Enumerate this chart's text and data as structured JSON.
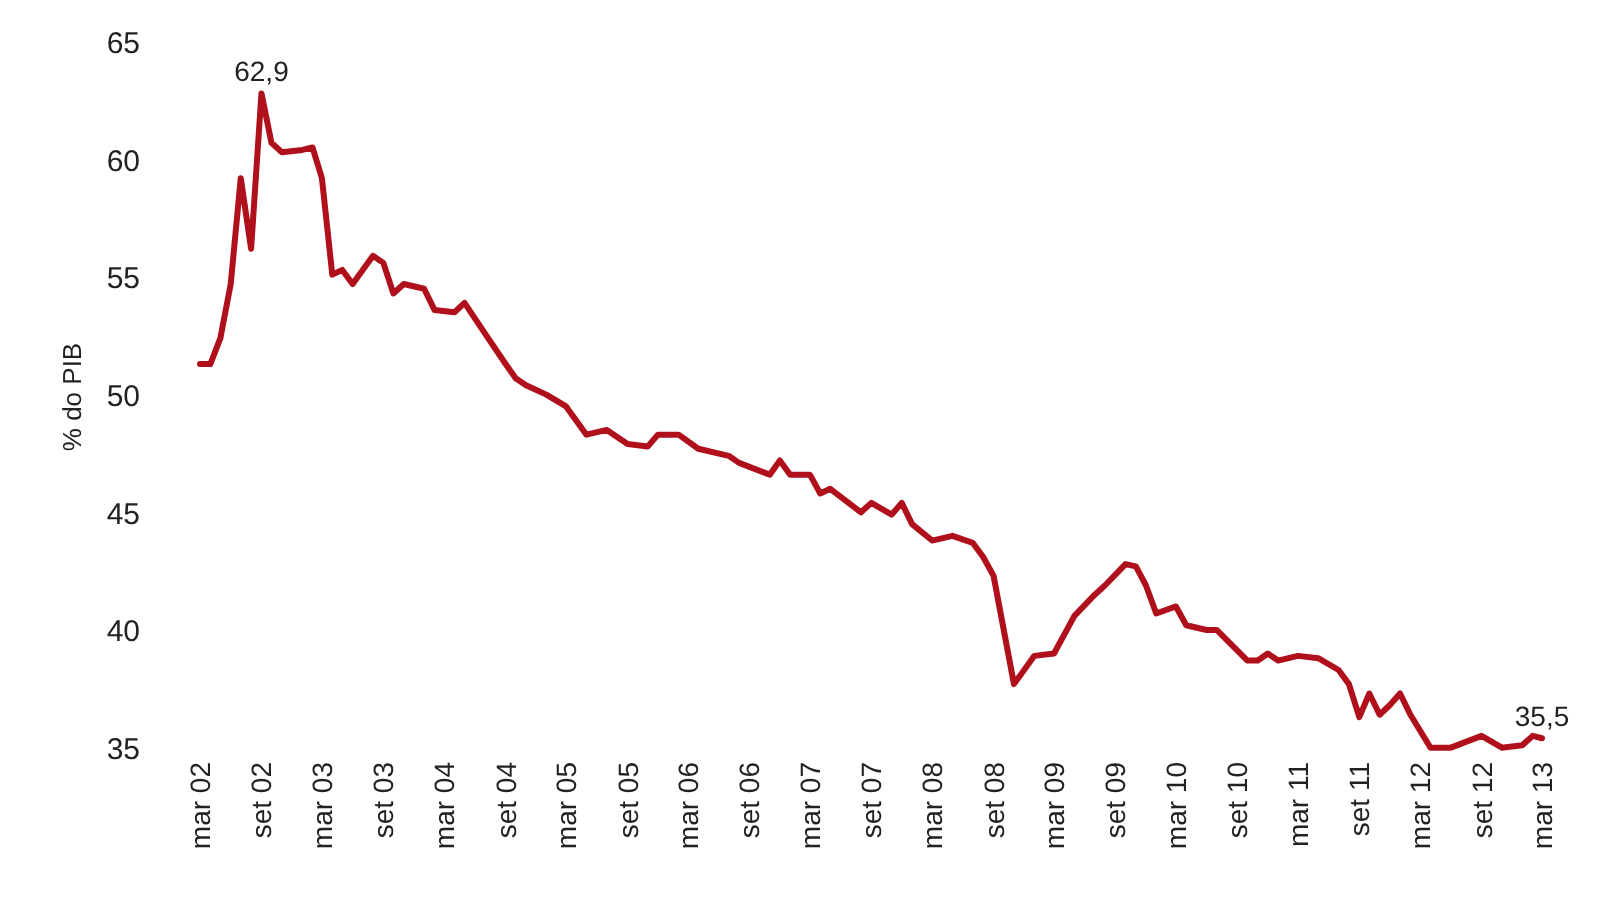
{
  "chart_data": {
    "type": "line",
    "ylabel": "% do PIB",
    "x": [
      "2002-03",
      "2002-04",
      "2002-05",
      "2002-06",
      "2002-07",
      "2002-08",
      "2002-09",
      "2002-10",
      "2002-11",
      "2003-01",
      "2003-02",
      "2003-03",
      "2003-04",
      "2003-05",
      "2003-06",
      "2003-08",
      "2003-09",
      "2003-10",
      "2003-11",
      "2004-01",
      "2004-02",
      "2004-04",
      "2004-05",
      "2004-07",
      "2004-09",
      "2004-10",
      "2004-11",
      "2005-01",
      "2005-03",
      "2005-05",
      "2005-07",
      "2005-09",
      "2005-11",
      "2005-12",
      "2006-02",
      "2006-04",
      "2006-07",
      "2006-08",
      "2006-11",
      "2006-12",
      "2007-01",
      "2007-03",
      "2007-04",
      "2007-05",
      "2007-08",
      "2007-09",
      "2007-11",
      "2007-12",
      "2008-01",
      "2008-03",
      "2008-05",
      "2008-07",
      "2008-08",
      "2008-09",
      "2008-11",
      "2009-01",
      "2009-03",
      "2009-05",
      "2009-07",
      "2009-08",
      "2009-10",
      "2009-11",
      "2009-12",
      "2010-01",
      "2010-03",
      "2010-04",
      "2010-06",
      "2010-07",
      "2010-10",
      "2010-11",
      "2010-12",
      "2011-01",
      "2011-03",
      "2011-05",
      "2011-07",
      "2011-08",
      "2011-09",
      "2011-10",
      "2011-11",
      "2011-12",
      "2012-01",
      "2012-02",
      "2012-04",
      "2012-06",
      "2012-09",
      "2012-11",
      "2013-01",
      "2013-02",
      "2013-03"
    ],
    "series": [
      {
        "color": "#b0101c",
        "values": [
          51.4,
          51.4,
          52.5,
          54.8,
          59.3,
          56.3,
          62.9,
          60.8,
          60.4,
          60.5,
          60.6,
          59.3,
          55.2,
          55.4,
          54.8,
          56.0,
          55.7,
          54.4,
          54.8,
          54.6,
          53.7,
          53.6,
          54.0,
          52.7,
          51.4,
          50.8,
          50.5,
          50.1,
          49.6,
          48.4,
          48.6,
          48.0,
          47.9,
          48.4,
          48.4,
          47.8,
          47.5,
          47.2,
          46.7,
          47.3,
          46.7,
          46.7,
          45.9,
          46.1,
          45.1,
          45.5,
          45.0,
          45.5,
          44.6,
          43.9,
          44.1,
          43.8,
          43.2,
          42.4,
          37.8,
          39.0,
          39.1,
          40.7,
          41.6,
          42.0,
          42.9,
          42.8,
          42.0,
          40.8,
          41.1,
          40.3,
          40.1,
          40.1,
          38.8,
          38.8,
          39.1,
          38.8,
          39.0,
          38.9,
          38.4,
          37.8,
          36.4,
          37.4,
          36.5,
          36.9,
          37.4,
          36.5,
          35.1,
          35.1,
          35.6,
          35.1,
          35.2,
          35.6,
          35.5
        ]
      }
    ],
    "xlim": [
      "2002-03",
      "2013-03"
    ],
    "xticks": [
      {
        "value": "2002-03",
        "label": "mar 02"
      },
      {
        "value": "2002-09",
        "label": "set 02"
      },
      {
        "value": "2003-03",
        "label": "mar 03"
      },
      {
        "value": "2003-09",
        "label": "set 03"
      },
      {
        "value": "2004-03",
        "label": "mar 04"
      },
      {
        "value": "2004-09",
        "label": "set 04"
      },
      {
        "value": "2005-03",
        "label": "mar 05"
      },
      {
        "value": "2005-09",
        "label": "set 05"
      },
      {
        "value": "2006-03",
        "label": "mar 06"
      },
      {
        "value": "2006-09",
        "label": "set 06"
      },
      {
        "value": "2007-03",
        "label": "mar 07"
      },
      {
        "value": "2007-09",
        "label": "set 07"
      },
      {
        "value": "2008-03",
        "label": "mar 08"
      },
      {
        "value": "2008-09",
        "label": "set 08"
      },
      {
        "value": "2009-03",
        "label": "mar 09"
      },
      {
        "value": "2009-09",
        "label": "set 09"
      },
      {
        "value": "2010-03",
        "label": "mar 10"
      },
      {
        "value": "2010-09",
        "label": "set 10"
      },
      {
        "value": "2011-03",
        "label": "mar 11"
      },
      {
        "value": "2011-09",
        "label": "set 11"
      },
      {
        "value": "2012-03",
        "label": "mar 12"
      },
      {
        "value": "2012-09",
        "label": "set 12"
      },
      {
        "value": "2013-03",
        "label": "mar 13"
      }
    ],
    "ylim": [
      35,
      65
    ],
    "yticks": [
      35,
      40,
      45,
      50,
      55,
      60,
      65
    ],
    "annotations": [
      {
        "text": "62,9",
        "x": "2002-09",
        "y": 62.9
      },
      {
        "text": "35,5",
        "x": "2013-03",
        "y": 35.5
      }
    ],
    "grid": false,
    "marker": "none",
    "line_style": "solid"
  }
}
